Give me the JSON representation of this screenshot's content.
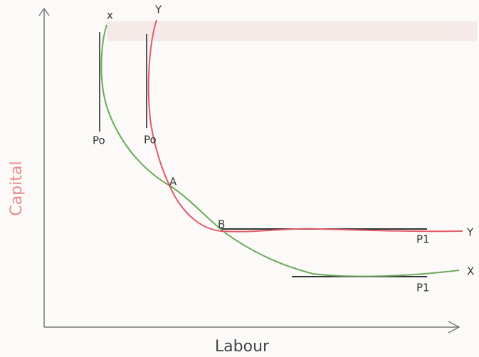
{
  "axes": {
    "x_label": "Labour",
    "y_label": "Capital"
  },
  "curves": [
    {
      "label": "X",
      "top_label": "x",
      "start_label": "Po",
      "end_label": "P1"
    },
    {
      "label": "Y",
      "top_label": "Y",
      "start_label": "Po",
      "end_label": "P1"
    }
  ],
  "points": [
    {
      "label": "A"
    },
    {
      "label": "B"
    }
  ]
}
